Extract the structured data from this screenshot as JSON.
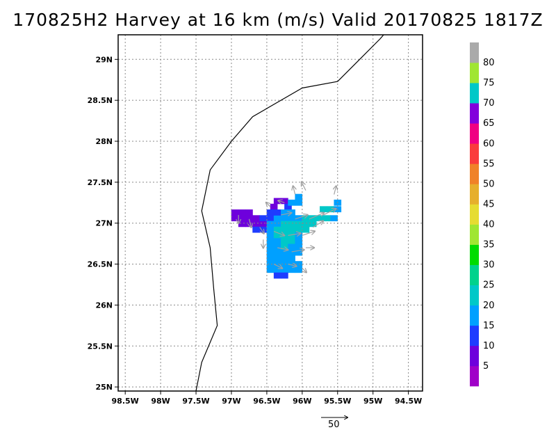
{
  "title": "170825H2 Harvey at 16 km (m/s) Valid 20170825 1817Z",
  "map": {
    "lon_ticks": [
      "98.5W",
      "98W",
      "97.5W",
      "97W",
      "96.5W",
      "96W",
      "95.5W",
      "95W",
      "94.5W"
    ],
    "lon_values": [
      -98.5,
      -98,
      -97.5,
      -97,
      -96.5,
      -96,
      -95.5,
      -95,
      -94.5
    ],
    "lat_ticks": [
      "25N",
      "25.5N",
      "26N",
      "26.5N",
      "27N",
      "27.5N",
      "28N",
      "28.5N",
      "29N"
    ],
    "lat_values": [
      25,
      25.5,
      26,
      26.5,
      27,
      27.5,
      28,
      28.5,
      29
    ],
    "lon_range": [
      -98.6,
      -94.3
    ],
    "lat_range": [
      24.95,
      29.3
    ],
    "grid": true,
    "coastline_color": "#000000",
    "vector_color": "#a0a0a0",
    "coastline": [
      [
        -94.85,
        29.3
      ],
      [
        -94.9,
        29.25
      ],
      [
        -95.5,
        28.73
      ],
      [
        -96.0,
        28.65
      ],
      [
        -96.7,
        28.3
      ],
      [
        -97.0,
        28.0
      ],
      [
        -97.3,
        27.65
      ],
      [
        -97.42,
        27.15
      ],
      [
        -97.3,
        26.7
      ],
      [
        -97.25,
        26.2
      ],
      [
        -97.2,
        25.75
      ],
      [
        -97.42,
        25.3
      ],
      [
        -97.5,
        24.95
      ]
    ]
  },
  "reference_vector": {
    "label": "50"
  },
  "colorbar": {
    "labels": [
      "5",
      "10",
      "15",
      "20",
      "25",
      "30",
      "35",
      "40",
      "45",
      "50",
      "55",
      "60",
      "65",
      "70",
      "75",
      "80"
    ],
    "colors": [
      "#a000c8",
      "#6e00dc",
      "#1e3cff",
      "#00a0ff",
      "#00c8c8",
      "#00d28c",
      "#00dc00",
      "#a0e632",
      "#e6dc32",
      "#e6af2d",
      "#f08228",
      "#fa3c3c",
      "#f00082",
      "#8200dc",
      "#00c8c8",
      "#a0e632",
      "#aaaaaa"
    ]
  },
  "wind_field": {
    "units": "m/s",
    "cells": [
      {
        "lon": -96.95,
        "lat": 27.13,
        "v": 5
      },
      {
        "lon": -96.85,
        "lat": 27.13,
        "v": 5
      },
      {
        "lon": -96.75,
        "lat": 27.13,
        "v": 5
      },
      {
        "lon": -96.95,
        "lat": 27.06,
        "v": 5
      },
      {
        "lon": -96.85,
        "lat": 27.06,
        "v": 5
      },
      {
        "lon": -96.75,
        "lat": 27.06,
        "v": 5
      },
      {
        "lon": -96.65,
        "lat": 27.06,
        "v": 5
      },
      {
        "lon": -96.85,
        "lat": 26.99,
        "v": 5
      },
      {
        "lon": -96.75,
        "lat": 26.99,
        "v": 5
      },
      {
        "lon": -96.65,
        "lat": 26.99,
        "v": 5
      },
      {
        "lon": -96.55,
        "lat": 26.99,
        "v": 5
      },
      {
        "lon": -96.65,
        "lat": 26.92,
        "v": 10
      },
      {
        "lon": -96.55,
        "lat": 26.92,
        "v": 10
      },
      {
        "lon": -96.55,
        "lat": 27.06,
        "v": 10
      },
      {
        "lon": -96.45,
        "lat": 27.06,
        "v": 10
      },
      {
        "lon": -96.35,
        "lat": 27.06,
        "v": 15
      },
      {
        "lon": -96.25,
        "lat": 27.06,
        "v": 15
      },
      {
        "lon": -96.15,
        "lat": 27.06,
        "v": 15
      },
      {
        "lon": -96.05,
        "lat": 27.06,
        "v": 15
      },
      {
        "lon": -95.95,
        "lat": 27.06,
        "v": 20
      },
      {
        "lon": -95.85,
        "lat": 27.06,
        "v": 20
      },
      {
        "lon": -95.75,
        "lat": 27.06,
        "v": 20
      },
      {
        "lon": -95.65,
        "lat": 27.06,
        "v": 20
      },
      {
        "lon": -95.55,
        "lat": 27.06,
        "v": 15
      },
      {
        "lon": -95.7,
        "lat": 27.17,
        "v": 20
      },
      {
        "lon": -95.6,
        "lat": 27.17,
        "v": 20
      },
      {
        "lon": -95.5,
        "lat": 27.17,
        "v": 15
      },
      {
        "lon": -95.5,
        "lat": 27.25,
        "v": 15
      },
      {
        "lon": -96.45,
        "lat": 26.99,
        "v": 15
      },
      {
        "lon": -96.35,
        "lat": 26.99,
        "v": 15
      },
      {
        "lon": -96.25,
        "lat": 26.99,
        "v": 20
      },
      {
        "lon": -96.15,
        "lat": 26.99,
        "v": 20
      },
      {
        "lon": -96.05,
        "lat": 26.99,
        "v": 20
      },
      {
        "lon": -95.95,
        "lat": 26.99,
        "v": 20
      },
      {
        "lon": -95.85,
        "lat": 26.99,
        "v": 20
      },
      {
        "lon": -96.45,
        "lat": 26.92,
        "v": 15
      },
      {
        "lon": -96.35,
        "lat": 26.92,
        "v": 20
      },
      {
        "lon": -96.25,
        "lat": 26.92,
        "v": 20
      },
      {
        "lon": -96.15,
        "lat": 26.92,
        "v": 20
      },
      {
        "lon": -96.05,
        "lat": 26.92,
        "v": 20
      },
      {
        "lon": -95.95,
        "lat": 26.92,
        "v": 20
      },
      {
        "lon": -96.45,
        "lat": 26.85,
        "v": 15
      },
      {
        "lon": -96.35,
        "lat": 26.85,
        "v": 20
      },
      {
        "lon": -96.25,
        "lat": 26.85,
        "v": 20
      },
      {
        "lon": -96.15,
        "lat": 26.85,
        "v": 20
      },
      {
        "lon": -96.05,
        "lat": 26.85,
        "v": 15
      },
      {
        "lon": -96.45,
        "lat": 26.78,
        "v": 15
      },
      {
        "lon": -96.35,
        "lat": 26.78,
        "v": 15
      },
      {
        "lon": -96.25,
        "lat": 26.78,
        "v": 20
      },
      {
        "lon": -96.15,
        "lat": 26.78,
        "v": 20
      },
      {
        "lon": -96.05,
        "lat": 26.78,
        "v": 15
      },
      {
        "lon": -96.45,
        "lat": 26.71,
        "v": 15
      },
      {
        "lon": -96.35,
        "lat": 26.71,
        "v": 15
      },
      {
        "lon": -96.25,
        "lat": 26.71,
        "v": 20
      },
      {
        "lon": -96.15,
        "lat": 26.71,
        "v": 15
      },
      {
        "lon": -96.05,
        "lat": 26.71,
        "v": 15
      },
      {
        "lon": -96.45,
        "lat": 26.64,
        "v": 15
      },
      {
        "lon": -96.35,
        "lat": 26.64,
        "v": 15
      },
      {
        "lon": -96.25,
        "lat": 26.64,
        "v": 15
      },
      {
        "lon": -96.15,
        "lat": 26.64,
        "v": 15
      },
      {
        "lon": -96.05,
        "lat": 26.64,
        "v": 15
      },
      {
        "lon": -96.45,
        "lat": 26.57,
        "v": 15
      },
      {
        "lon": -96.35,
        "lat": 26.57,
        "v": 15
      },
      {
        "lon": -96.25,
        "lat": 26.57,
        "v": 15
      },
      {
        "lon": -96.15,
        "lat": 26.57,
        "v": 15
      },
      {
        "lon": -96.45,
        "lat": 26.5,
        "v": 15
      },
      {
        "lon": -96.35,
        "lat": 26.5,
        "v": 15
      },
      {
        "lon": -96.25,
        "lat": 26.5,
        "v": 15
      },
      {
        "lon": -96.15,
        "lat": 26.5,
        "v": 15
      },
      {
        "lon": -96.05,
        "lat": 26.5,
        "v": 15
      },
      {
        "lon": -96.45,
        "lat": 26.43,
        "v": 15
      },
      {
        "lon": -96.35,
        "lat": 26.43,
        "v": 15
      },
      {
        "lon": -96.25,
        "lat": 26.43,
        "v": 15
      },
      {
        "lon": -96.15,
        "lat": 26.43,
        "v": 15
      },
      {
        "lon": -96.05,
        "lat": 26.43,
        "v": 15
      },
      {
        "lon": -96.35,
        "lat": 26.36,
        "v": 10
      },
      {
        "lon": -96.25,
        "lat": 26.36,
        "v": 10
      },
      {
        "lon": -96.35,
        "lat": 27.27,
        "v": 5
      },
      {
        "lon": -96.25,
        "lat": 27.27,
        "v": 5
      },
      {
        "lon": -96.4,
        "lat": 27.2,
        "v": 5
      },
      {
        "lon": -96.2,
        "lat": 27.2,
        "v": 10
      },
      {
        "lon": -96.45,
        "lat": 27.13,
        "v": 10
      },
      {
        "lon": -96.35,
        "lat": 27.13,
        "v": 10
      },
      {
        "lon": -96.25,
        "lat": 27.13,
        "v": 15
      },
      {
        "lon": -96.15,
        "lat": 27.13,
        "v": 15
      },
      {
        "lon": -96.15,
        "lat": 27.25,
        "v": 15
      },
      {
        "lon": -96.05,
        "lat": 27.25,
        "v": 15
      },
      {
        "lon": -96.05,
        "lat": 27.32,
        "v": 15
      }
    ],
    "vectors": [
      {
        "lon": -96.9,
        "lat": 27.1,
        "u": 0,
        "v": -4
      },
      {
        "lon": -96.75,
        "lat": 27.05,
        "u": 1,
        "v": -4
      },
      {
        "lon": -96.6,
        "lat": 26.95,
        "u": 2,
        "v": -3
      },
      {
        "lon": -96.1,
        "lat": 27.35,
        "u": -1,
        "v": 4
      },
      {
        "lon": -95.95,
        "lat": 27.4,
        "u": -2,
        "v": 4
      },
      {
        "lon": -95.55,
        "lat": 27.35,
        "u": 1,
        "v": 4
      },
      {
        "lon": -96.3,
        "lat": 27.1,
        "u": 5,
        "v": 1
      },
      {
        "lon": -96.1,
        "lat": 27.05,
        "u": 6,
        "v": 2
      },
      {
        "lon": -95.9,
        "lat": 27.05,
        "u": 7,
        "v": 3
      },
      {
        "lon": -95.7,
        "lat": 27.1,
        "u": 6,
        "v": 3
      },
      {
        "lon": -96.4,
        "lat": 26.9,
        "u": 5,
        "v": -2
      },
      {
        "lon": -96.2,
        "lat": 26.85,
        "u": 6,
        "v": 1
      },
      {
        "lon": -96.0,
        "lat": 26.85,
        "u": 6,
        "v": 2
      },
      {
        "lon": -95.85,
        "lat": 26.95,
        "u": 5,
        "v": 3
      },
      {
        "lon": -96.35,
        "lat": 26.7,
        "u": 5,
        "v": -1
      },
      {
        "lon": -96.15,
        "lat": 26.65,
        "u": 6,
        "v": 1
      },
      {
        "lon": -95.95,
        "lat": 26.7,
        "u": 4,
        "v": 0
      },
      {
        "lon": -96.4,
        "lat": 26.5,
        "u": 4,
        "v": -2
      },
      {
        "lon": -96.2,
        "lat": 26.5,
        "u": 4,
        "v": -1
      },
      {
        "lon": -96.0,
        "lat": 26.45,
        "u": 2,
        "v": -2
      },
      {
        "lon": -96.45,
        "lat": 27.2,
        "u": -2,
        "v": 2
      },
      {
        "lon": -96.25,
        "lat": 27.25,
        "u": -3,
        "v": 1
      },
      {
        "lon": -96.55,
        "lat": 26.8,
        "u": 0,
        "v": -4
      }
    ]
  }
}
